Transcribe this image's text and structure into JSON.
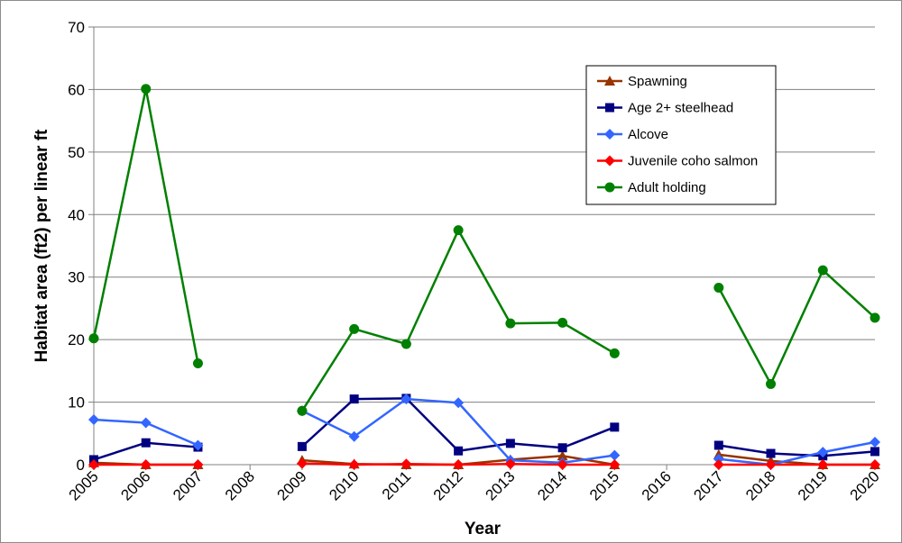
{
  "chart_data": {
    "type": "line",
    "xlabel": "Year",
    "ylabel": "Habitat area (ft2) per linear ft",
    "ylim": [
      0,
      70
    ],
    "yticks": [
      "0",
      "10",
      "20",
      "30",
      "40",
      "50",
      "60",
      "70"
    ],
    "categories": [
      "2005",
      "2006",
      "2007",
      "2008",
      "2009",
      "2010",
      "2011",
      "2012",
      "2013",
      "2014",
      "2015",
      "2016",
      "2017",
      "2018",
      "2019",
      "2020"
    ],
    "grid": true,
    "legend_position": "top-right",
    "series": [
      {
        "name": "Spawning",
        "color": "#993300",
        "marker": "triangle",
        "values": [
          0.3,
          0,
          0,
          null,
          0.7,
          0.1,
          0,
          0,
          0.8,
          1.4,
          0,
          null,
          1.6,
          0.6,
          0,
          0
        ]
      },
      {
        "name": "Age 2+ steelhead",
        "color": "#000080",
        "marker": "square",
        "values": [
          0.8,
          3.5,
          2.8,
          null,
          2.9,
          10.5,
          10.6,
          2.2,
          3.4,
          2.7,
          6,
          null,
          3.1,
          1.8,
          1.4,
          2.1
        ]
      },
      {
        "name": "Alcove",
        "color": "#3366ff",
        "marker": "diamond",
        "values": [
          7.2,
          6.7,
          3.1,
          null,
          8.6,
          4.5,
          10.5,
          9.9,
          0.7,
          0.3,
          1.5,
          null,
          0.9,
          0,
          2,
          3.6
        ]
      },
      {
        "name": "Juvenile coho salmon",
        "color": "#ff0000",
        "marker": "diamond",
        "values": [
          0,
          0,
          0,
          null,
          0.2,
          0,
          0.1,
          0,
          0.1,
          0,
          0,
          null,
          0,
          0,
          0,
          0
        ]
      },
      {
        "name": "Adult holding",
        "color": "#008000",
        "marker": "circle",
        "values": [
          20.2,
          60.1,
          16.2,
          null,
          8.6,
          21.7,
          19.3,
          37.5,
          22.6,
          22.7,
          17.8,
          null,
          28.3,
          12.9,
          31.1,
          23.5
        ]
      }
    ]
  }
}
